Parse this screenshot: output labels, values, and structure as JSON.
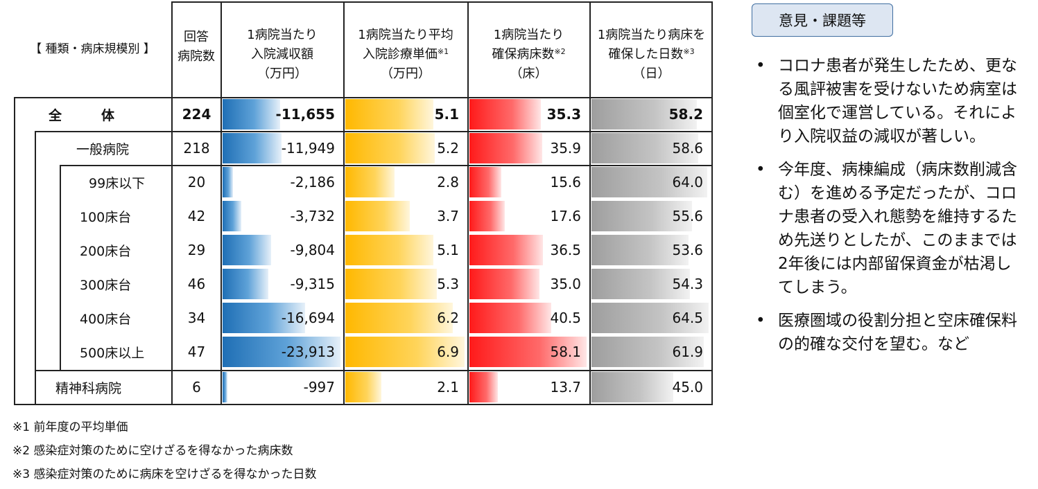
{
  "headers": {
    "category": "【 種類・病床規模別 】",
    "count": [
      "回答",
      "病院数"
    ],
    "c1": [
      "1病院当たり",
      "入院減収額",
      "（万円）"
    ],
    "c2": [
      "1病院当たり平均",
      "入院診療単価",
      "（万円）"
    ],
    "c2_sup": "※1",
    "c3": [
      "1病院当たり",
      "確保病床数",
      "（床）"
    ],
    "c3_sup": "※2",
    "c4": [
      "1病院当たり病床を",
      "確保した日数",
      "（日）"
    ],
    "c4_sup": "※3"
  },
  "rows": [
    {
      "label": "全　　　体",
      "count": "224",
      "v1": "-11,655",
      "v2": "5.1",
      "v3": "35.3",
      "v4": "58.2",
      "f1": 0.49,
      "f2": 0.74,
      "f3": 0.61,
      "f4": 0.9
    },
    {
      "label": "一般病院",
      "count": "218",
      "v1": "-11,949",
      "v2": "5.2",
      "v3": "35.9",
      "v4": "58.6",
      "f1": 0.5,
      "f2": 0.75,
      "f3": 0.62,
      "f4": 0.91
    },
    {
      "label": "99床以下",
      "count": "20",
      "v1": "-2,186",
      "v2": "2.8",
      "v3": "15.6",
      "v4": "64.0",
      "f1": 0.09,
      "f2": 0.41,
      "f3": 0.27,
      "f4": 0.99
    },
    {
      "label": "100床台",
      "count": "42",
      "v1": "-3,732",
      "v2": "3.7",
      "v3": "17.6",
      "v4": "55.6",
      "f1": 0.16,
      "f2": 0.54,
      "f3": 0.3,
      "f4": 0.86
    },
    {
      "label": "200床台",
      "count": "29",
      "v1": "-9,804",
      "v2": "5.1",
      "v3": "36.5",
      "v4": "53.6",
      "f1": 0.41,
      "f2": 0.74,
      "f3": 0.63,
      "f4": 0.83
    },
    {
      "label": "300床台",
      "count": "46",
      "v1": "-9,315",
      "v2": "5.3",
      "v3": "35.0",
      "v4": "54.3",
      "f1": 0.39,
      "f2": 0.77,
      "f3": 0.6,
      "f4": 0.84
    },
    {
      "label": "400床台",
      "count": "34",
      "v1": "-16,694",
      "v2": "6.2",
      "v3": "40.5",
      "v4": "64.5",
      "f1": 0.7,
      "f2": 0.9,
      "f3": 0.7,
      "f4": 1.0
    },
    {
      "label": "500床以上",
      "count": "47",
      "v1": "-23,913",
      "v2": "6.9",
      "v3": "58.1",
      "v4": "61.9",
      "f1": 1.0,
      "f2": 1.0,
      "f3": 1.0,
      "f4": 0.96
    },
    {
      "label": "精神科病院",
      "count": "6",
      "v1": "-997",
      "v2": "2.1",
      "v3": "13.7",
      "v4": "45.0",
      "f1": 0.04,
      "f2": 0.3,
      "f3": 0.24,
      "f4": 0.7
    }
  ],
  "notes": [
    "※1 前年度の平均単価",
    "※2 感染症対策のために空けざるを得なかった病床数",
    "※3 感染症対策のために病床を空けざるを得なかった日数"
  ],
  "opinion": {
    "title": "意見・課題等",
    "items": [
      "コロナ患者が発生したため、更なる風評被害を受けないため病室は個室化で運営している。それにより入院収益の減収が著しい。",
      "今年度、病棟編成（病床数削減含む）を進める予定だったが、コロナ患者の受入れ態勢を維持するため先送りとしたが、このままでは2年後には内部留保資金が枯渇してしまう。",
      "医療圏域の役割分担と空床確保料の的確な交付を望む。など"
    ]
  },
  "colors": {
    "bar1": "#1f6fb5",
    "bar2": "#ffb800",
    "bar3": "#ff1a1a",
    "bar4": "#9e9e9e",
    "box_bg": "#dde6f2",
    "box_border": "#3e6da0"
  }
}
